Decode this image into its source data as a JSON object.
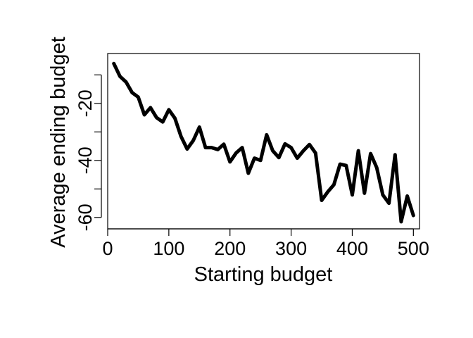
{
  "chart_data": {
    "type": "line",
    "title": "",
    "xlabel": "Starting budget",
    "ylabel": "Average ending budget",
    "xlim": [
      0,
      510
    ],
    "ylim": [
      -64,
      -2.5
    ],
    "xticks": [
      0,
      100,
      200,
      300,
      400,
      500
    ],
    "xtick_labels": [
      "0",
      "100",
      "200",
      "300",
      "400",
      "500"
    ],
    "yticks": [
      -60,
      -50,
      -40,
      -30,
      -20,
      -10
    ],
    "ytick_labels": [
      "-60",
      "",
      "-40",
      "",
      "-20",
      ""
    ],
    "grid": false,
    "line_color": "#000000",
    "series": [
      {
        "x": [
          10,
          20,
          30,
          40,
          50,
          60,
          70,
          80,
          90,
          100,
          110,
          120,
          130,
          140,
          150,
          160,
          170,
          180,
          190,
          200,
          210,
          220,
          230,
          240,
          250,
          260,
          270,
          280,
          290,
          300,
          310,
          320,
          330,
          340,
          350,
          360,
          370,
          380,
          390,
          400,
          410,
          420,
          430,
          440,
          450,
          460,
          470,
          480,
          490,
          500
        ],
        "y": [
          -6,
          -10.5,
          -12.5,
          -16.2,
          -17.8,
          -24,
          -21.5,
          -25,
          -26.5,
          -22.2,
          -25.2,
          -31.6,
          -36,
          -33,
          -28.3,
          -35.5,
          -35.5,
          -36.2,
          -34.3,
          -40.5,
          -37.4,
          -35.5,
          -44.5,
          -39.2,
          -40,
          -31,
          -36.6,
          -39,
          -34.2,
          -35.5,
          -39.2,
          -36.6,
          -34.4,
          -37.4,
          -54,
          -51,
          -48.5,
          -41.3,
          -41.8,
          -52.1,
          -36.6,
          -51.5,
          -37.6,
          -42.5,
          -52.1,
          -55,
          -38,
          -61.5,
          -52.5,
          -59.3
        ]
      }
    ]
  }
}
